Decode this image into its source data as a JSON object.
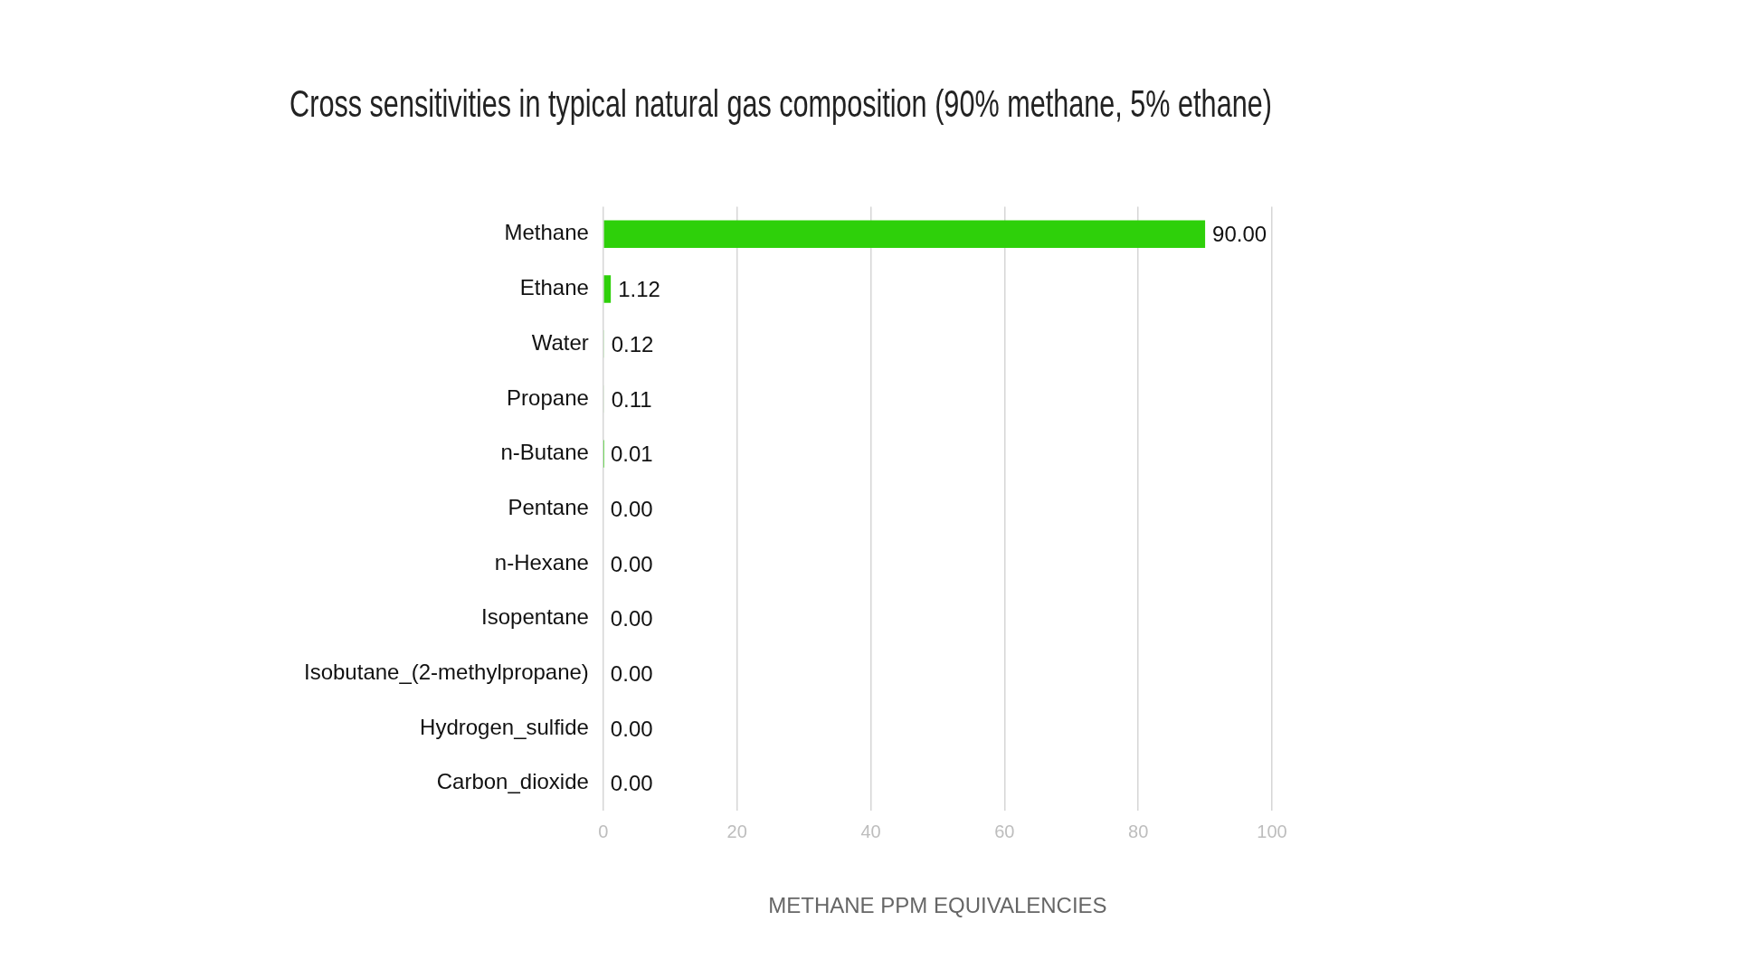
{
  "chart_data": {
    "type": "bar",
    "orientation": "horizontal",
    "title": "Cross sensitivities in typical natural gas composition (90% methane, 5% ethane)",
    "xlabel": "METHANE PPM EQUIVALENCIES",
    "categories": [
      "Methane",
      "Ethane",
      "Water",
      "Propane",
      "n-Butane",
      "Pentane",
      "n-Hexane",
      "Isopentane",
      "Isobutane_(2-methylpropane)",
      "Hydrogen_sulfide",
      "Carbon_dioxide"
    ],
    "values": [
      90,
      1.12,
      0.12,
      0.11,
      0.01,
      0,
      0,
      0,
      0,
      0,
      0
    ],
    "value_labels": [
      "90.00",
      "1.12",
      "0.12",
      "0.11",
      "0.01",
      "0.00",
      "0.00",
      "0.00",
      "0.00",
      "0.00",
      "0.00"
    ],
    "color": "#2ed00a",
    "xlim": [
      0,
      100
    ],
    "xticks": [
      0,
      20,
      40,
      60,
      80,
      100
    ],
    "grid": "x",
    "legend": false
  }
}
